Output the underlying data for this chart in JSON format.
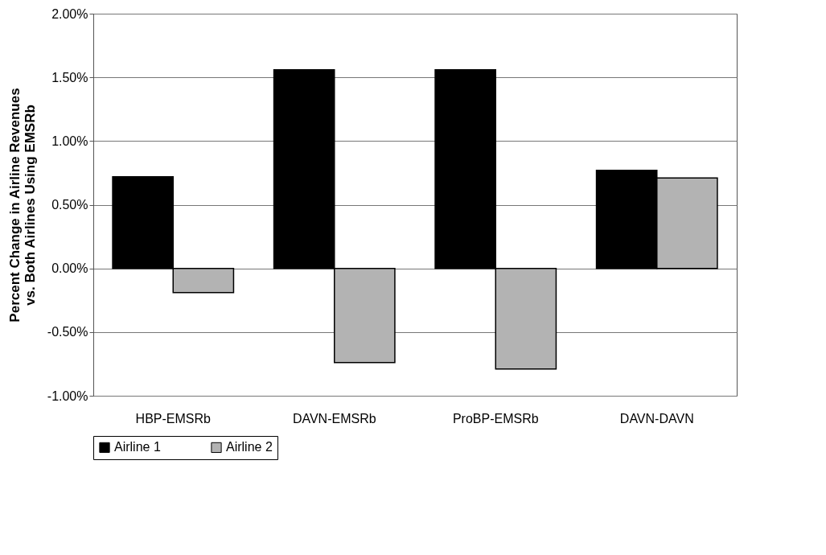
{
  "chart_data": {
    "type": "bar",
    "ylabel": "Percent Change in Airline Revenues\nvs. Both Airlines Using EMSRb",
    "categories": [
      "HBP-EMSRb",
      "DAVN-EMSRb",
      "ProBP-EMSRb",
      "DAVN-DAVN"
    ],
    "series": [
      {
        "name": "Airline 1",
        "color": "#000000",
        "values": [
          0.72,
          1.56,
          1.56,
          0.77
        ]
      },
      {
        "name": "Airline 2",
        "color": "#b3b3b3",
        "values": [
          -0.19,
          -0.74,
          -0.79,
          0.71
        ]
      }
    ],
    "ylim": [
      -1,
      2
    ],
    "yticks": [
      {
        "value": -1,
        "label": "-1.00%"
      },
      {
        "value": -0.5,
        "label": "-0.50%"
      },
      {
        "value": 0,
        "label": "0.00%"
      },
      {
        "value": 0.5,
        "label": "0.50%"
      },
      {
        "value": 1,
        "label": "1.00%"
      },
      {
        "value": 1.5,
        "label": "1.50%"
      },
      {
        "value": 2,
        "label": "2.00%"
      }
    ],
    "grid": "y",
    "legend": "bottom"
  }
}
